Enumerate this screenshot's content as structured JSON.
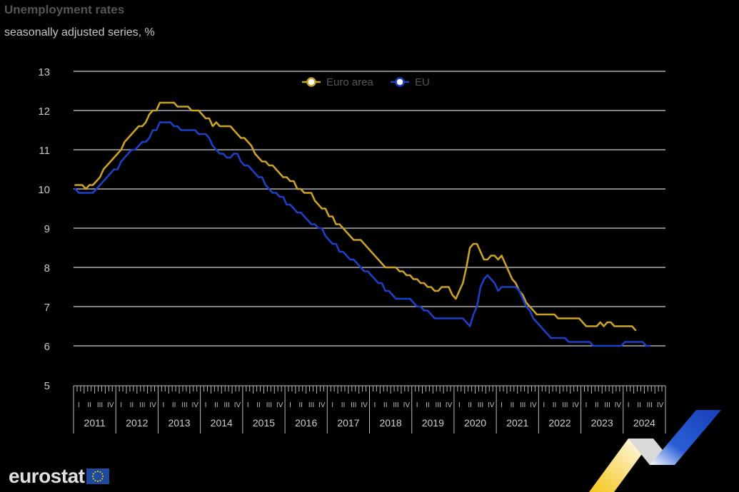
{
  "header": {
    "title": "Unemployment rates",
    "subtitle": "seasonally adjusted series, %"
  },
  "logo": {
    "text": "eurostat",
    "icon": "eu-flag-icon"
  },
  "chart_data": {
    "type": "line",
    "title": "Unemployment rates",
    "subtitle": "seasonally adjusted series, %",
    "ylim": [
      5,
      13
    ],
    "yticks": [
      5,
      6,
      7,
      8,
      9,
      10,
      11,
      12,
      13
    ],
    "grid": true,
    "legend": "top-center",
    "x_start": "2011-01",
    "x_frequency": "monthly",
    "quarter_labels": [
      "I",
      "II",
      "III",
      "IV"
    ],
    "years": [
      "2011",
      "2012",
      "2013",
      "2014",
      "2015",
      "2016",
      "2017",
      "2018",
      "2019",
      "2020",
      "2021",
      "2022",
      "2023",
      "2024"
    ],
    "series": [
      {
        "name": "Euro area",
        "color": "#c9a227",
        "values": [
          10.1,
          10.1,
          10.1,
          10.0,
          10.1,
          10.1,
          10.2,
          10.3,
          10.5,
          10.6,
          10.7,
          10.8,
          10.9,
          11.0,
          11.2,
          11.3,
          11.4,
          11.5,
          11.6,
          11.6,
          11.7,
          11.9,
          12.0,
          12.0,
          12.2,
          12.2,
          12.2,
          12.2,
          12.2,
          12.1,
          12.1,
          12.1,
          12.1,
          12.0,
          12.0,
          12.0,
          11.9,
          11.8,
          11.8,
          11.6,
          11.7,
          11.6,
          11.6,
          11.6,
          11.6,
          11.5,
          11.4,
          11.3,
          11.3,
          11.2,
          11.1,
          10.9,
          10.8,
          10.7,
          10.7,
          10.6,
          10.6,
          10.5,
          10.4,
          10.3,
          10.3,
          10.2,
          10.2,
          10.0,
          10.0,
          9.9,
          9.9,
          9.9,
          9.7,
          9.6,
          9.5,
          9.5,
          9.3,
          9.3,
          9.1,
          9.1,
          9.0,
          8.9,
          8.8,
          8.7,
          8.7,
          8.7,
          8.6,
          8.5,
          8.4,
          8.3,
          8.2,
          8.1,
          8.0,
          8.0,
          8.0,
          8.0,
          7.9,
          7.9,
          7.8,
          7.8,
          7.7,
          7.7,
          7.6,
          7.6,
          7.5,
          7.5,
          7.4,
          7.4,
          7.5,
          7.5,
          7.5,
          7.3,
          7.2,
          7.4,
          7.6,
          8.0,
          8.5,
          8.6,
          8.6,
          8.4,
          8.2,
          8.2,
          8.3,
          8.3,
          8.2,
          8.3,
          8.1,
          7.9,
          7.7,
          7.6,
          7.4,
          7.3,
          7.1,
          7.0,
          6.9,
          6.8,
          6.8,
          6.8,
          6.8,
          6.8,
          6.8,
          6.7,
          6.7,
          6.7,
          6.7,
          6.7,
          6.7,
          6.7,
          6.6,
          6.5,
          6.5,
          6.5,
          6.5,
          6.6,
          6.5,
          6.6,
          6.6,
          6.5,
          6.5,
          6.5,
          6.5,
          6.5,
          6.5,
          6.4
        ]
      },
      {
        "name": "EU",
        "color": "#1f3fc4",
        "values": [
          10.0,
          9.9,
          9.9,
          9.9,
          9.9,
          9.9,
          10.0,
          10.1,
          10.2,
          10.3,
          10.4,
          10.5,
          10.5,
          10.7,
          10.8,
          10.9,
          11.0,
          11.0,
          11.1,
          11.2,
          11.2,
          11.3,
          11.5,
          11.5,
          11.7,
          11.7,
          11.7,
          11.7,
          11.6,
          11.6,
          11.5,
          11.5,
          11.5,
          11.5,
          11.5,
          11.4,
          11.4,
          11.4,
          11.3,
          11.1,
          11.0,
          10.9,
          10.9,
          10.8,
          10.8,
          10.9,
          10.9,
          10.7,
          10.6,
          10.6,
          10.5,
          10.4,
          10.3,
          10.3,
          10.1,
          10.0,
          9.9,
          9.9,
          9.8,
          9.8,
          9.6,
          9.6,
          9.5,
          9.4,
          9.4,
          9.3,
          9.2,
          9.1,
          9.1,
          9.0,
          9.0,
          8.8,
          8.7,
          8.6,
          8.6,
          8.4,
          8.4,
          8.3,
          8.2,
          8.2,
          8.1,
          8.0,
          7.9,
          7.9,
          7.8,
          7.7,
          7.6,
          7.6,
          7.4,
          7.4,
          7.3,
          7.2,
          7.2,
          7.2,
          7.2,
          7.2,
          7.1,
          7.0,
          7.0,
          6.9,
          6.9,
          6.8,
          6.7,
          6.7,
          6.7,
          6.7,
          6.7,
          6.7,
          6.7,
          6.7,
          6.7,
          6.6,
          6.5,
          6.8,
          7.0,
          7.5,
          7.7,
          7.8,
          7.7,
          7.6,
          7.4,
          7.5,
          7.5,
          7.5,
          7.5,
          7.5,
          7.4,
          7.2,
          7.0,
          6.9,
          6.7,
          6.6,
          6.5,
          6.4,
          6.3,
          6.2,
          6.2,
          6.2,
          6.2,
          6.2,
          6.1,
          6.1,
          6.1,
          6.1,
          6.1,
          6.1,
          6.1,
          6.0,
          6.0,
          6.0,
          6.0,
          6.0,
          6.0,
          6.0,
          6.0,
          6.0,
          6.1,
          6.1,
          6.1,
          6.1,
          6.1,
          6.1,
          6.0,
          6.0
        ]
      }
    ]
  }
}
